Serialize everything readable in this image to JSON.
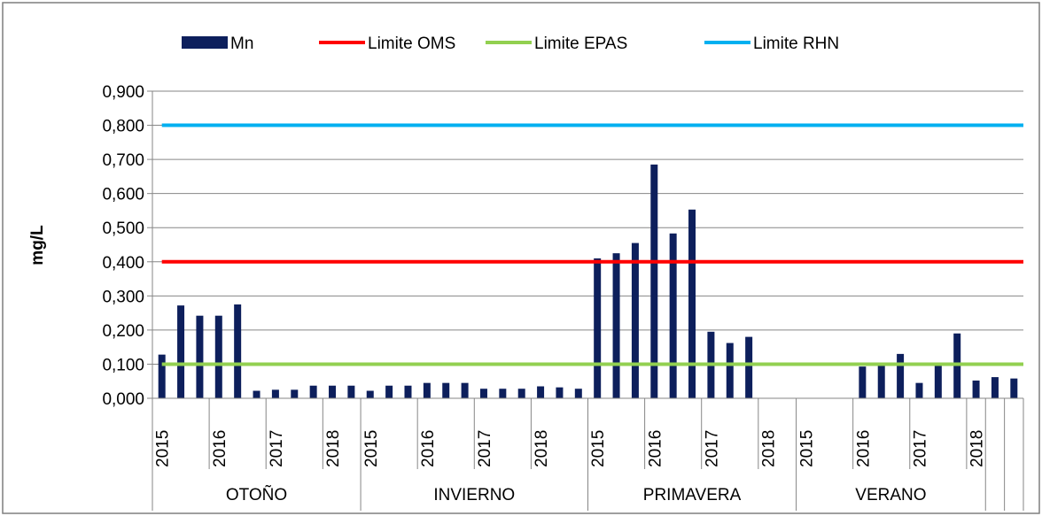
{
  "chart_data": {
    "type": "bar",
    "ylabel": "mg/L",
    "ylim": [
      0,
      0.9
    ],
    "y_ticks": [
      "0,000",
      "0,100",
      "0,200",
      "0,300",
      "0,400",
      "0,500",
      "0,600",
      "0,700",
      "0,800",
      "0,900"
    ],
    "grid": true,
    "legend_position": "top",
    "legend": [
      {
        "label": "Mn",
        "kind": "bar",
        "color": "#0d1f5c"
      },
      {
        "label": "Limite OMS",
        "kind": "line",
        "color": "#ff0000"
      },
      {
        "label": "Limite EPAS",
        "kind": "line",
        "color": "#92d050"
      },
      {
        "label": "Limite RHN",
        "kind": "line",
        "color": "#00b0f0"
      }
    ],
    "series": [
      {
        "name": "Mn",
        "color": "#0d1f5c",
        "values": [
          0.128,
          0.272,
          0.242,
          0.242,
          0.275,
          0.022,
          0.025,
          0.025,
          0.037,
          0.037,
          0.037,
          0.022,
          0.037,
          0.037,
          0.045,
          0.045,
          0.045,
          0.028,
          0.028,
          0.028,
          0.035,
          0.032,
          0.028,
          0.41,
          0.425,
          0.455,
          0.685,
          0.483,
          0.553,
          0.195,
          0.162,
          0.18,
          null,
          null,
          null,
          null,
          null,
          0.093,
          0.098,
          0.13,
          0.045,
          0.098,
          0.19,
          0.052,
          0.062,
          0.058
        ]
      }
    ],
    "reference_lines": [
      {
        "name": "Limite OMS",
        "value": 0.4,
        "color": "#ff0000"
      },
      {
        "name": "Limite EPAS",
        "value": 0.1,
        "color": "#92d050"
      },
      {
        "name": "Limite RHN",
        "value": 0.8,
        "color": "#00b0f0"
      }
    ],
    "groups": [
      {
        "label": "OTOÑO",
        "bars": 11,
        "years": [
          {
            "label": "2015",
            "at": 0
          },
          {
            "label": "2016",
            "at": 3
          },
          {
            "label": "2017",
            "at": 6
          },
          {
            "label": "2018",
            "at": 9
          }
        ]
      },
      {
        "label": "INVIERNO",
        "bars": 12,
        "years": [
          {
            "label": "2015",
            "at": 0
          },
          {
            "label": "2016",
            "at": 3
          },
          {
            "label": "2017",
            "at": 6
          },
          {
            "label": "2018",
            "at": 9
          }
        ]
      },
      {
        "label": "PRIMAVERA",
        "bars": 11,
        "years": [
          {
            "label": "2015",
            "at": 0
          },
          {
            "label": "2016",
            "at": 3
          },
          {
            "label": "2017",
            "at": 6
          },
          {
            "label": "2018",
            "at": 9
          }
        ]
      },
      {
        "label": "VERANO",
        "bars": 10,
        "years": [
          {
            "label": "2015",
            "at": 0
          },
          {
            "label": "2016",
            "at": 3
          },
          {
            "label": "2017",
            "at": 6
          },
          {
            "label": "2018",
            "at": 9
          }
        ]
      }
    ],
    "trailing_bars": 2
  }
}
